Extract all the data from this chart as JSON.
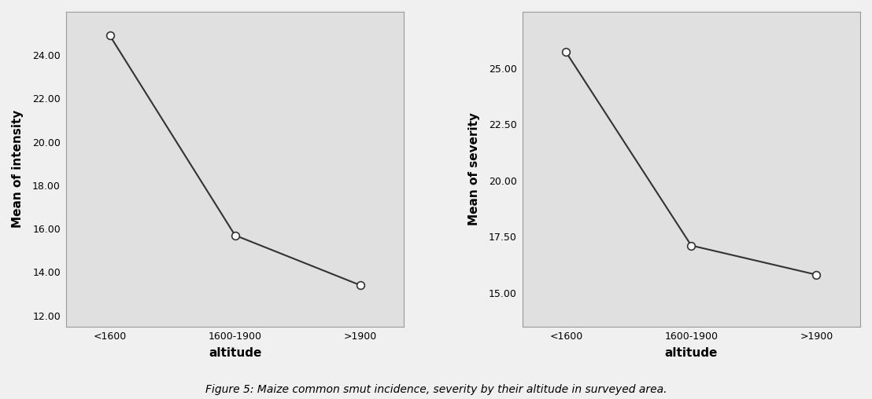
{
  "plot1": {
    "x": [
      0,
      1,
      2
    ],
    "y": [
      24.9,
      15.7,
      13.4
    ],
    "xtick_labels": [
      "<1600",
      "1600-1900",
      ">1900"
    ],
    "xlabel": "altitude",
    "ylabel": "Mean of intensity",
    "yticks": [
      12.0,
      14.0,
      16.0,
      18.0,
      20.0,
      22.0,
      24.0
    ],
    "ylim": [
      11.5,
      26.0
    ]
  },
  "plot2": {
    "x": [
      0,
      1,
      2
    ],
    "y": [
      25.7,
      17.1,
      15.8
    ],
    "xtick_labels": [
      "<1600",
      "1600-1900",
      ">1900"
    ],
    "xlabel": "altitude",
    "ylabel": "Mean of severity",
    "yticks": [
      15.0,
      17.5,
      20.0,
      22.5,
      25.0
    ],
    "ylim": [
      13.5,
      27.5
    ]
  },
  "caption": "Figure 5: Maize common smut incidence, severity by their altitude in surveyed area.",
  "bg_color": "#e8e8e8",
  "plot_bg_color": "#e0e0e0",
  "line_color": "#333333",
  "marker_color": "#ffffff",
  "marker_edge_color": "#333333",
  "marker_size": 7,
  "line_width": 1.5
}
